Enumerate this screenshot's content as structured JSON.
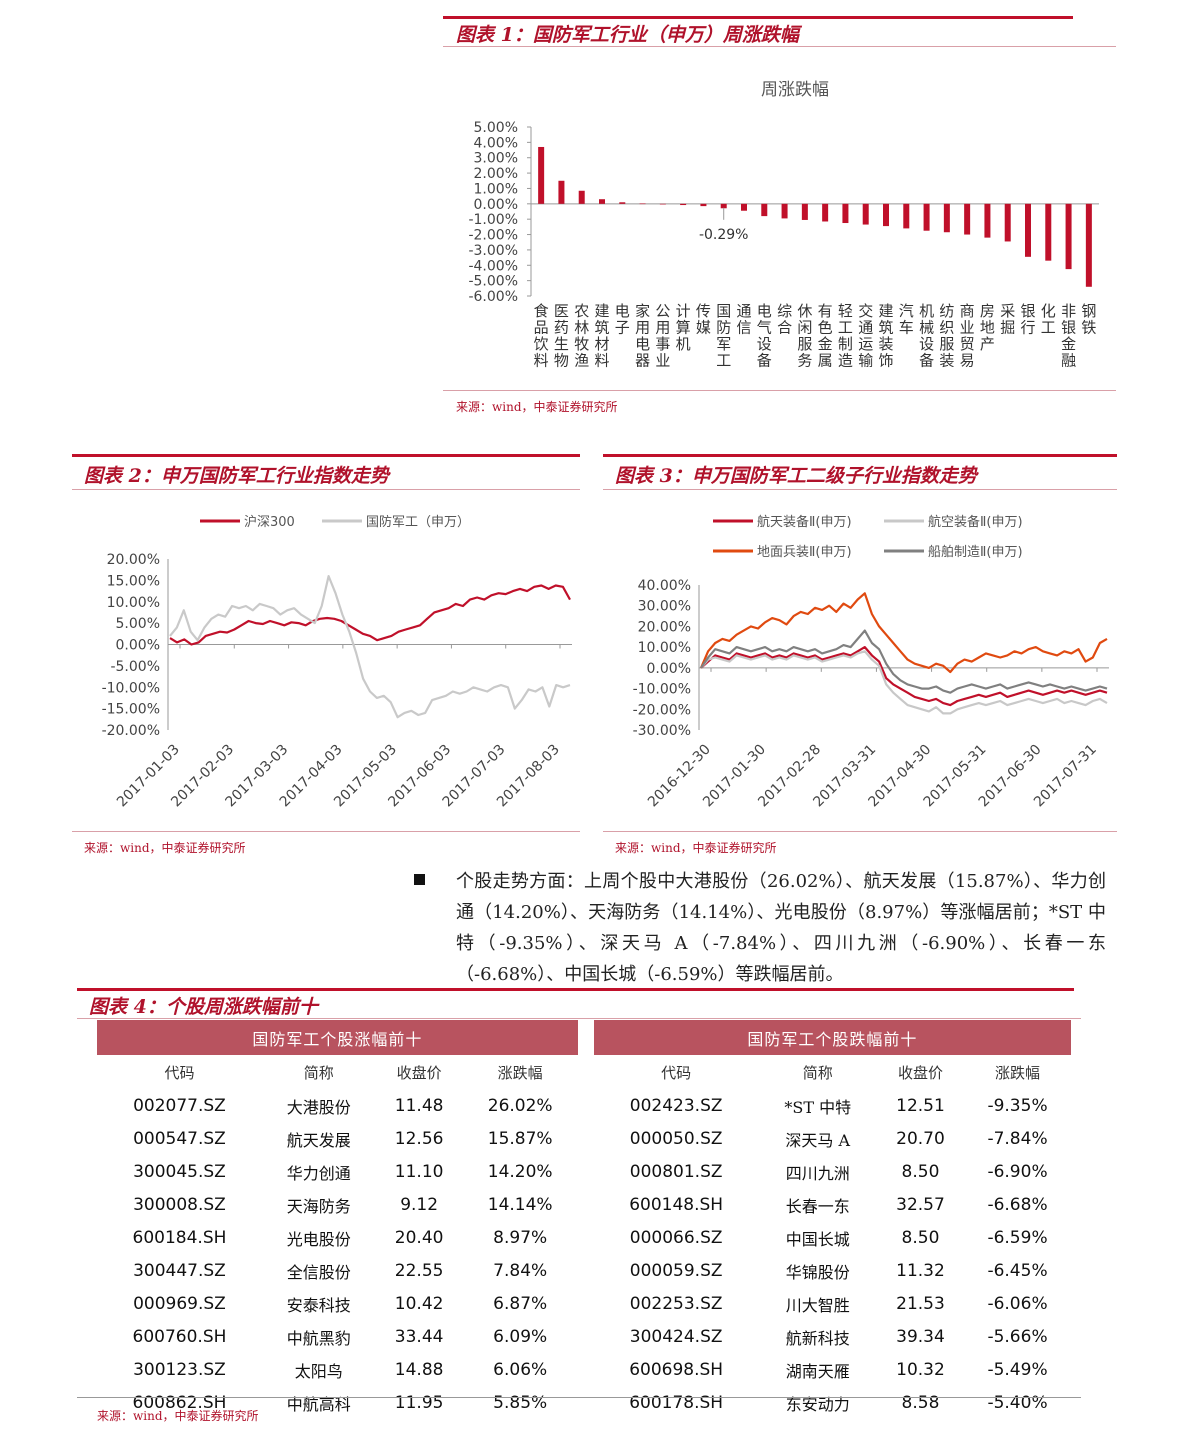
{
  "figure1": {
    "title": "图表 1：国防军工行业（申万）周涨跌幅",
    "source": "来源：wind，中泰证券研究所",
    "chart_data": {
      "type": "bar",
      "title": "周涨跌幅",
      "ylim": [
        -6,
        5
      ],
      "yticks": [
        "5.00%",
        "4.00%",
        "3.00%",
        "2.00%",
        "1.00%",
        "0.00%",
        "-1.00%",
        "-2.00%",
        "-3.00%",
        "-4.00%",
        "-5.00%",
        "-6.00%"
      ],
      "categories": [
        "食品饮料",
        "医药生物",
        "农林牧渔",
        "建筑材料",
        "电子",
        "家用电器",
        "公用事业",
        "计算机",
        "传媒",
        "国防军工",
        "通信",
        "电气设备",
        "综合",
        "休闲服务",
        "有色金属",
        "轻工制造",
        "交通运输",
        "建筑装饰",
        "汽车",
        "机械设备",
        "纺织服装",
        "商业贸易",
        "房地产",
        "采掘",
        "银行",
        "化工",
        "非银金融",
        "钢铁"
      ],
      "values": [
        3.7,
        1.5,
        0.85,
        0.3,
        0.1,
        0.02,
        -0.03,
        -0.08,
        -0.15,
        -0.29,
        -0.45,
        -0.8,
        -0.95,
        -1.05,
        -1.15,
        -1.25,
        -1.35,
        -1.45,
        -1.6,
        -1.75,
        -1.85,
        -2.0,
        -2.2,
        -2.45,
        -3.45,
        -3.7,
        -4.25,
        -5.4
      ],
      "annotation": {
        "text": "-0.29%",
        "category": "国防军工"
      },
      "bar_color": "#c0102a",
      "grid": false
    }
  },
  "figure2": {
    "title": "图表 2：申万国防军工行业指数走势",
    "source": "来源：wind，中泰证券研究所",
    "chart_data": {
      "type": "line",
      "ylim": [
        -20,
        20
      ],
      "yticks": [
        "20.00%",
        "15.00%",
        "10.00%",
        "5.00%",
        "0.00%",
        "-5.00%",
        "-10.00%",
        "-15.00%",
        "-20.00%"
      ],
      "xticks": [
        "2017-01-03",
        "2017-02-03",
        "2017-03-03",
        "2017-04-03",
        "2017-05-03",
        "2017-06-03",
        "2017-07-03",
        "2017-08-03"
      ],
      "legend_position": "top",
      "series": [
        {
          "name": "沪深300",
          "color": "#c0102a",
          "values": [
            1.5,
            0.5,
            1.2,
            0.0,
            0.5,
            2.0,
            2.5,
            3.0,
            2.8,
            3.5,
            4.5,
            5.5,
            5.0,
            4.8,
            5.5,
            5.0,
            4.5,
            5.2,
            5.0,
            4.5,
            5.5,
            6.0,
            6.2,
            6.0,
            5.5,
            4.5,
            3.5,
            2.5,
            2.0,
            1.0,
            1.5,
            2.0,
            3.0,
            3.5,
            4.0,
            4.5,
            6.0,
            7.5,
            8.0,
            8.5,
            9.5,
            9.0,
            10.5,
            11.0,
            10.5,
            11.5,
            12.0,
            11.8,
            12.5,
            13.0,
            12.5,
            13.5,
            13.8,
            13.0,
            13.8,
            13.5,
            10.5
          ]
        },
        {
          "name": "国防军工（申万）",
          "color": "#c9c9c9",
          "values": [
            2.0,
            4.0,
            8.0,
            3.0,
            1.0,
            4.0,
            6.0,
            7.0,
            6.5,
            9.0,
            8.5,
            9.0,
            8.0,
            9.5,
            9.0,
            8.5,
            7.0,
            8.0,
            8.5,
            7.0,
            6.0,
            5.0,
            9.0,
            16.0,
            12.0,
            7.0,
            3.0,
            -2.0,
            -8.0,
            -11.0,
            -12.5,
            -12.0,
            -13.5,
            -17.0,
            -16.0,
            -15.5,
            -16.5,
            -16.0,
            -13.0,
            -12.5,
            -12.0,
            -11.0,
            -11.5,
            -11.0,
            -10.0,
            -10.5,
            -11.0,
            -10.0,
            -9.5,
            -10.0,
            -15.0,
            -13.0,
            -10.5,
            -11.0,
            -10.0,
            -14.5,
            -9.5,
            -10.0,
            -9.5
          ]
        }
      ],
      "grid": false
    }
  },
  "figure3": {
    "title": "图表 3：申万国防军工二级子行业指数走势",
    "source": "来源：wind，中泰证券研究所",
    "chart_data": {
      "type": "line",
      "ylim": [
        -30,
        40
      ],
      "yticks": [
        "40.00%",
        "30.00%",
        "20.00%",
        "10.00%",
        "0.00%",
        "-10.00%",
        "-20.00%",
        "-30.00%"
      ],
      "xticks": [
        "2016-12-30",
        "2017-01-30",
        "2017-02-28",
        "2017-03-31",
        "2017-04-30",
        "2017-05-31",
        "2017-06-30",
        "2017-07-31"
      ],
      "legend_position": "top",
      "series": [
        {
          "name": "航天装备Ⅱ(申万)",
          "color": "#c0102a",
          "values": [
            0,
            3,
            6,
            5,
            4,
            7,
            6,
            5,
            6,
            7,
            5,
            6,
            5,
            7,
            6,
            5,
            6,
            4,
            5,
            6,
            7,
            6,
            8,
            10,
            6,
            3,
            -5,
            -8,
            -10,
            -12,
            -14,
            -15,
            -16,
            -15,
            -17,
            -18,
            -16,
            -15,
            -14,
            -13,
            -14,
            -13,
            -12,
            -14,
            -13,
            -12,
            -11,
            -12,
            -13,
            -12,
            -11,
            -12,
            -11,
            -12,
            -13,
            -12,
            -11,
            -12
          ]
        },
        {
          "name": "航空装备Ⅱ(申万)",
          "color": "#c8c8c8",
          "values": [
            0,
            4,
            5,
            4,
            3,
            6,
            5,
            4,
            5,
            6,
            4,
            5,
            4,
            6,
            5,
            4,
            5,
            3,
            4,
            5,
            6,
            5,
            7,
            8,
            4,
            1,
            -8,
            -12,
            -15,
            -18,
            -19,
            -20,
            -21,
            -19,
            -22,
            -22,
            -20,
            -19,
            -18,
            -17,
            -18,
            -17,
            -16,
            -18,
            -17,
            -16,
            -15,
            -16,
            -17,
            -16,
            -15,
            -17,
            -16,
            -17,
            -18,
            -16,
            -15,
            -17
          ]
        },
        {
          "name": "地面兵装Ⅱ(申万)",
          "color": "#e04a10",
          "values": [
            0,
            8,
            12,
            14,
            13,
            16,
            18,
            20,
            19,
            22,
            24,
            23,
            21,
            25,
            27,
            26,
            29,
            28,
            30,
            27,
            31,
            29,
            33,
            36,
            26,
            20,
            16,
            12,
            8,
            4,
            2,
            1,
            0,
            2,
            1,
            -2,
            2,
            4,
            3,
            5,
            7,
            6,
            5,
            6,
            8,
            7,
            9,
            10,
            8,
            7,
            6,
            8,
            7,
            9,
            3,
            5,
            12,
            14
          ]
        },
        {
          "name": "船舶制造Ⅱ(申万)",
          "color": "#808080",
          "values": [
            0,
            5,
            9,
            8,
            7,
            10,
            9,
            8,
            9,
            10,
            8,
            9,
            8,
            10,
            9,
            8,
            9,
            7,
            8,
            9,
            11,
            10,
            14,
            18,
            12,
            9,
            2,
            -3,
            -6,
            -8,
            -9,
            -10,
            -10,
            -9,
            -11,
            -12,
            -10,
            -9,
            -8,
            -9,
            -10,
            -9,
            -8,
            -10,
            -9,
            -8,
            -7,
            -8,
            -9,
            -8,
            -9,
            -10,
            -9,
            -10,
            -11,
            -10,
            -9,
            -10
          ]
        }
      ],
      "grid": false
    }
  },
  "bullet_text": "个股走势方面：上周个股中大港股份（26.02%）、航天发展（15.87%）、华力创通（14.20%）、天海防务（14.14%）、光电股份（8.97%）等涨幅居前；*ST 中特（-9.35%）、深天马 A（-7.84%）、四川九洲（-6.90%）、长春一东（-6.68%）、中国长城（-6.59%）等跌幅居前。",
  "figure4": {
    "title": "图表 4：个股周涨跌幅前十",
    "source": "来源：wind，中泰证券研究所",
    "gainers_header": "国防军工个股涨幅前十",
    "losers_header": "国防军工个股跌幅前十",
    "columns": [
      "代码",
      "简称",
      "收盘价",
      "涨跌幅"
    ],
    "gainers": [
      [
        "002077.SZ",
        "大港股份",
        "11.48",
        "26.02%"
      ],
      [
        "000547.SZ",
        "航天发展",
        "12.56",
        "15.87%"
      ],
      [
        "300045.SZ",
        "华力创通",
        "11.10",
        "14.20%"
      ],
      [
        "300008.SZ",
        "天海防务",
        "9.12",
        "14.14%"
      ],
      [
        "600184.SH",
        "光电股份",
        "20.40",
        "8.97%"
      ],
      [
        "300447.SZ",
        "全信股份",
        "22.55",
        "7.84%"
      ],
      [
        "000969.SZ",
        "安泰科技",
        "10.42",
        "6.87%"
      ],
      [
        "600760.SH",
        "中航黑豹",
        "33.44",
        "6.09%"
      ],
      [
        "300123.SZ",
        "太阳鸟",
        "14.88",
        "6.06%"
      ],
      [
        "600862.SH",
        "中航高科",
        "11.95",
        "5.85%"
      ]
    ],
    "losers": [
      [
        "002423.SZ",
        "*ST 中特",
        "12.51",
        "-9.35%"
      ],
      [
        "000050.SZ",
        "深天马 A",
        "20.70",
        "-7.84%"
      ],
      [
        "000801.SZ",
        "四川九洲",
        "8.50",
        "-6.90%"
      ],
      [
        "600148.SH",
        "长春一东",
        "32.57",
        "-6.68%"
      ],
      [
        "000066.SZ",
        "中国长城",
        "8.50",
        "-6.59%"
      ],
      [
        "000059.SZ",
        "华锦股份",
        "11.32",
        "-6.45%"
      ],
      [
        "002253.SZ",
        "川大智胜",
        "21.53",
        "-6.06%"
      ],
      [
        "300424.SZ",
        "航新科技",
        "39.34",
        "-5.66%"
      ],
      [
        "600698.SH",
        "湖南天雁",
        "10.32",
        "-5.49%"
      ],
      [
        "600178.SH",
        "东安动力",
        "8.58",
        "-5.40%"
      ]
    ]
  }
}
